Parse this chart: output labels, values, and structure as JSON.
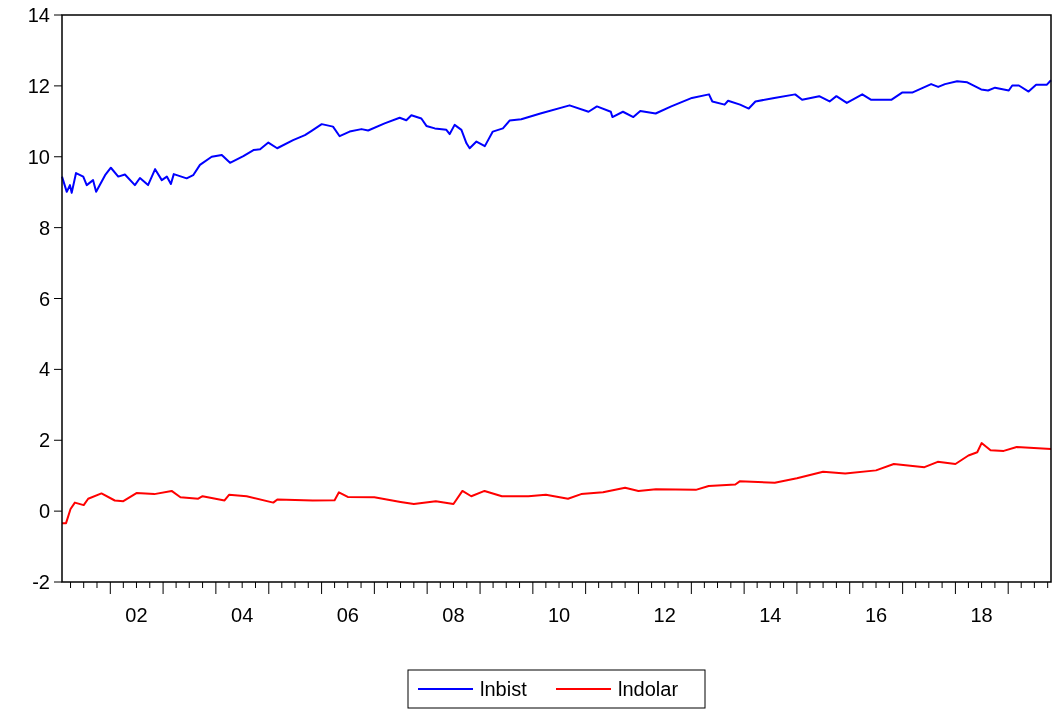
{
  "chart_data": {
    "type": "line",
    "xlim": [
      "2001-02-01",
      "2019-10-24"
    ],
    "ylim": [
      -2,
      14
    ],
    "yticks": [
      -2,
      0,
      2,
      4,
      6,
      8,
      10,
      12,
      14
    ],
    "grid": false,
    "legend": "bottom",
    "line_style": "solid",
    "marker": "none",
    "xticks": [
      {
        "value": "2001-04",
        "label": null
      },
      {
        "value": "2001-07",
        "label": null
      },
      {
        "value": "2001-10",
        "label": null
      },
      {
        "value": "2002-01",
        "label": null
      },
      {
        "value": "2002-04",
        "label": null
      },
      {
        "value": "2002-07",
        "label": "02"
      },
      {
        "value": "2002-10",
        "label": null
      },
      {
        "value": "2003-01",
        "label": null
      },
      {
        "value": "2003-04",
        "label": null
      },
      {
        "value": "2003-07",
        "label": null
      },
      {
        "value": "2003-10",
        "label": null
      },
      {
        "value": "2004-01",
        "label": null
      },
      {
        "value": "2004-04",
        "label": null
      },
      {
        "value": "2004-07",
        "label": "04"
      },
      {
        "value": "2004-10",
        "label": null
      },
      {
        "value": "2005-01",
        "label": null
      },
      {
        "value": "2005-04",
        "label": null
      },
      {
        "value": "2005-07",
        "label": null
      },
      {
        "value": "2005-10",
        "label": null
      },
      {
        "value": "2006-01",
        "label": null
      },
      {
        "value": "2006-04",
        "label": null
      },
      {
        "value": "2006-07",
        "label": "06"
      },
      {
        "value": "2006-10",
        "label": null
      },
      {
        "value": "2007-01",
        "label": null
      },
      {
        "value": "2007-04",
        "label": null
      },
      {
        "value": "2007-07",
        "label": null
      },
      {
        "value": "2007-10",
        "label": null
      },
      {
        "value": "2008-01",
        "label": null
      },
      {
        "value": "2008-04",
        "label": null
      },
      {
        "value": "2008-07",
        "label": "08"
      },
      {
        "value": "2008-10",
        "label": null
      },
      {
        "value": "2009-01",
        "label": null
      },
      {
        "value": "2009-04",
        "label": null
      },
      {
        "value": "2009-07",
        "label": null
      },
      {
        "value": "2009-10",
        "label": null
      },
      {
        "value": "2010-01",
        "label": null
      },
      {
        "value": "2010-04",
        "label": null
      },
      {
        "value": "2010-07",
        "label": "10"
      },
      {
        "value": "2010-10",
        "label": null
      },
      {
        "value": "2011-01",
        "label": null
      },
      {
        "value": "2011-04",
        "label": null
      },
      {
        "value": "2011-07",
        "label": null
      },
      {
        "value": "2011-10",
        "label": null
      },
      {
        "value": "2012-01",
        "label": null
      },
      {
        "value": "2012-04",
        "label": null
      },
      {
        "value": "2012-07",
        "label": "12"
      },
      {
        "value": "2012-10",
        "label": null
      },
      {
        "value": "2013-01",
        "label": null
      },
      {
        "value": "2013-04",
        "label": null
      },
      {
        "value": "2013-07",
        "label": null
      },
      {
        "value": "2013-10",
        "label": null
      },
      {
        "value": "2014-01",
        "label": null
      },
      {
        "value": "2014-04",
        "label": null
      },
      {
        "value": "2014-07",
        "label": "14"
      },
      {
        "value": "2014-10",
        "label": null
      },
      {
        "value": "2015-01",
        "label": null
      },
      {
        "value": "2015-04",
        "label": null
      },
      {
        "value": "2015-07",
        "label": null
      },
      {
        "value": "2015-10",
        "label": null
      },
      {
        "value": "2016-01",
        "label": null
      },
      {
        "value": "2016-04",
        "label": null
      },
      {
        "value": "2016-07",
        "label": "16"
      },
      {
        "value": "2016-10",
        "label": null
      },
      {
        "value": "2017-01",
        "label": null
      },
      {
        "value": "2017-04",
        "label": null
      },
      {
        "value": "2017-07",
        "label": null
      },
      {
        "value": "2017-10",
        "label": null
      },
      {
        "value": "2018-01",
        "label": null
      },
      {
        "value": "2018-04",
        "label": null
      },
      {
        "value": "2018-07",
        "label": "18"
      },
      {
        "value": "2018-10",
        "label": null
      },
      {
        "value": "2019-01",
        "label": null
      },
      {
        "value": "2019-04",
        "label": null
      },
      {
        "value": "2019-07",
        "label": null
      },
      {
        "value": "2019-10",
        "label": null
      }
    ],
    "series": [
      {
        "name": "lnbist",
        "color": "#0000ff",
        "x": [
          "2001-02-01",
          "2001-03-06",
          "2001-03-28",
          "2001-04-09",
          "2001-05-09",
          "2001-06-28",
          "2001-07-22",
          "2001-09-04",
          "2001-09-25",
          "2001-11-26",
          "2002-01-05",
          "2002-02-25",
          "2002-04-12",
          "2002-06-20",
          "2002-07-25",
          "2002-09-19",
          "2002-11-07",
          "2002-12-23",
          "2003-01-27",
          "2003-02-24",
          "2003-03-16",
          "2003-06-13",
          "2003-07-28",
          "2003-09-13",
          "2003-12-03",
          "2004-02-11",
          "2004-04-08",
          "2004-07-09",
          "2004-09-17",
          "2004-11-02",
          "2004-12-29",
          "2005-02-28",
          "2005-06-18",
          "2005-09-08",
          "2005-10-24",
          "2006-01-02",
          "2006-03-21",
          "2006-05-06",
          "2006-07-14",
          "2006-10-04",
          "2006-11-19",
          "2007-03-13",
          "2007-06-25",
          "2007-08-10",
          "2007-09-14",
          "2007-11-22",
          "2007-12-27",
          "2008-02-23",
          "2008-05-13",
          "2008-06-05",
          "2008-07-09",
          "2008-08-25",
          "2008-09-29",
          "2008-10-21",
          "2008-12-07",
          "2009-02-03",
          "2009-03-30",
          "2009-06-08",
          "2009-07-24",
          "2009-10-13",
          "2010-02-22",
          "2010-09-12",
          "2011-01-21",
          "2011-03-20",
          "2011-06-24",
          "2011-07-05",
          "2011-09-16",
          "2011-11-27",
          "2012-01-14",
          "2012-04-29",
          "2012-08-15",
          "2013-01-05",
          "2013-05-03",
          "2013-05-26",
          "2013-08-19",
          "2013-09-12",
          "2013-12-04",
          "2014-02-02",
          "2014-03-20",
          "2014-07-29",
          "2014-12-20",
          "2015-02-06",
          "2015-06-04",
          "2015-08-15",
          "2015-10-01",
          "2015-12-12",
          "2016-03-28",
          "2016-05-26",
          "2016-10-17",
          "2016-12-28",
          "2017-03-08",
          "2017-07-17",
          "2017-09-04",
          "2017-10-21",
          "2018-01-13",
          "2018-03-24",
          "2018-06-28",
          "2018-08-15",
          "2018-10-02",
          "2019-01-05",
          "2019-01-29",
          "2019-03-16",
          "2019-05-22",
          "2019-07-13",
          "2019-09-24",
          "2019-10-24"
        ],
        "values": [
          9.44,
          9.01,
          9.2,
          8.98,
          9.54,
          9.44,
          9.2,
          9.34,
          9.01,
          9.48,
          9.69,
          9.44,
          9.5,
          9.2,
          9.4,
          9.2,
          9.65,
          9.34,
          9.44,
          9.23,
          9.51,
          9.39,
          9.48,
          9.77,
          10.0,
          10.05,
          9.83,
          10.02,
          10.19,
          10.21,
          10.4,
          10.24,
          10.47,
          10.61,
          10.73,
          10.92,
          10.85,
          10.58,
          10.71,
          10.78,
          10.74,
          10.94,
          11.1,
          11.03,
          11.17,
          11.08,
          10.87,
          10.8,
          10.76,
          10.64,
          10.9,
          10.76,
          10.38,
          10.24,
          10.43,
          10.3,
          10.71,
          10.8,
          11.02,
          11.06,
          11.22,
          11.45,
          11.27,
          11.42,
          11.27,
          11.12,
          11.27,
          11.12,
          11.29,
          11.22,
          11.42,
          11.66,
          11.76,
          11.56,
          11.47,
          11.58,
          11.47,
          11.36,
          11.56,
          11.66,
          11.76,
          11.61,
          11.71,
          11.56,
          11.71,
          11.52,
          11.76,
          11.61,
          11.61,
          11.81,
          11.81,
          12.05,
          11.97,
          12.05,
          12.13,
          12.1,
          11.9,
          11.87,
          11.95,
          11.87,
          12.01,
          12.01,
          11.84,
          12.03,
          12.03,
          12.16
        ]
      },
      {
        "name": "lndolar",
        "color": "#ff0000",
        "x": [
          "2001-02-01",
          "2001-03-01",
          "2001-04-01",
          "2001-05-01",
          "2001-07-01",
          "2001-08-01",
          "2001-11-01",
          "2002-02-01",
          "2002-04-01",
          "2002-07-01",
          "2002-11-01",
          "2003-03-01",
          "2003-05-01",
          "2003-09-01",
          "2003-10-01",
          "2004-03-01",
          "2004-04-01",
          "2004-08-01",
          "2005-02-01",
          "2005-03-01",
          "2005-11-01",
          "2006-04-01",
          "2006-05-01",
          "2006-07-01",
          "2007-01-01",
          "2007-07-01",
          "2007-10-01",
          "2008-03-01",
          "2008-07-01",
          "2008-09-01",
          "2008-11-01",
          "2009-02-01",
          "2009-06-01",
          "2009-12-01",
          "2010-04-01",
          "2010-09-01",
          "2010-12-01",
          "2011-05-01",
          "2011-10-01",
          "2012-01-01",
          "2012-05-01",
          "2013-02-01",
          "2013-05-01",
          "2013-11-01",
          "2013-12-01",
          "2014-08-01",
          "2015-01-01",
          "2015-07-01",
          "2015-12-01",
          "2016-07-01",
          "2016-11-01",
          "2017-06-01",
          "2017-09-01",
          "2018-01-01",
          "2018-04-01",
          "2018-06-01",
          "2018-07-01",
          "2018-09-01",
          "2018-12-01",
          "2019-03-01",
          "2019-10-24"
        ],
        "values": [
          -0.34,
          -0.34,
          0.06,
          0.24,
          0.17,
          0.35,
          0.5,
          0.3,
          0.28,
          0.51,
          0.48,
          0.57,
          0.39,
          0.35,
          0.42,
          0.3,
          0.46,
          0.42,
          0.24,
          0.33,
          0.3,
          0.31,
          0.53,
          0.4,
          0.39,
          0.26,
          0.2,
          0.28,
          0.2,
          0.57,
          0.42,
          0.57,
          0.42,
          0.42,
          0.46,
          0.35,
          0.48,
          0.53,
          0.66,
          0.57,
          0.62,
          0.6,
          0.71,
          0.75,
          0.84,
          0.8,
          0.93,
          1.11,
          1.06,
          1.15,
          1.33,
          1.24,
          1.39,
          1.33,
          1.57,
          1.66,
          1.92,
          1.72,
          1.7,
          1.81,
          1.75
        ]
      }
    ]
  }
}
